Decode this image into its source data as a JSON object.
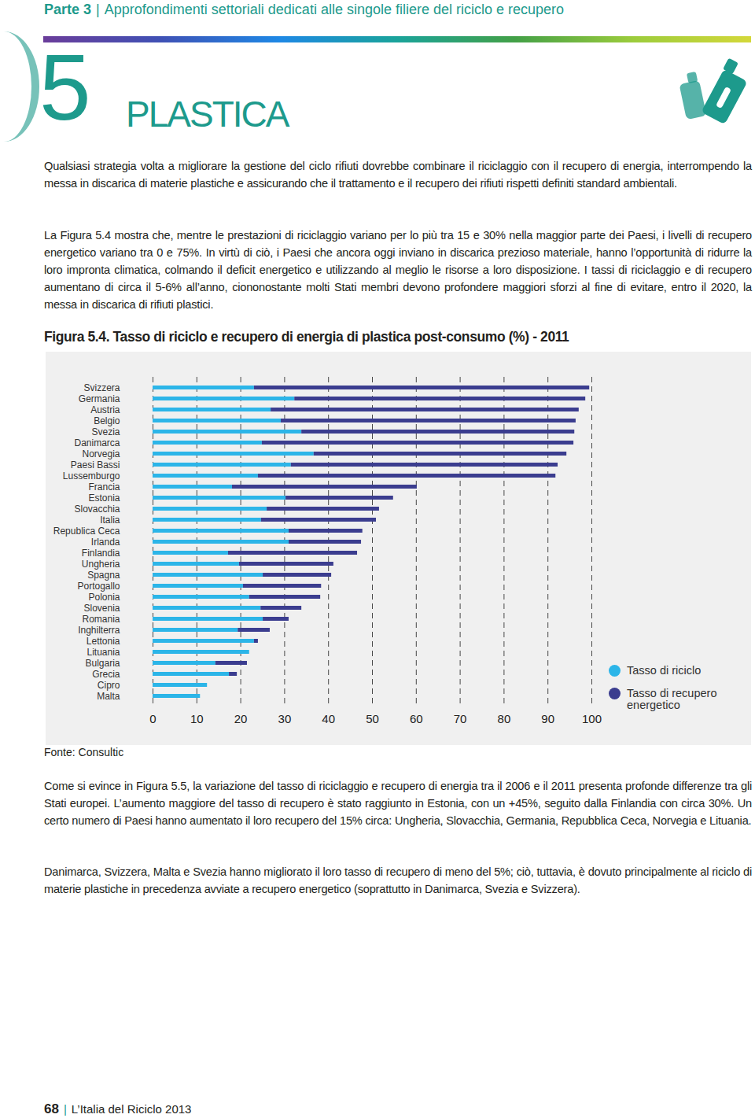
{
  "document": {
    "header": {
      "part": "Parte 3",
      "separator": "|",
      "text": "Approfondimenti settoriali dedicati alle singole filiere del riciclo e recupero"
    },
    "chapter": {
      "number": "5",
      "title": "PLASTICA"
    },
    "paragraphs_before": [
      "Qualsiasi strategia volta a migliorare la gestione del ciclo rifiuti dovrebbe combinare il riciclaggio con il recupero di energia, interrompendo la messa in discarica di materie plastiche e assicurando che il trattamento e il recupero dei rifiuti rispetti definiti standard ambientali.",
      "La Figura 5.4 mostra che, mentre le prestazioni di riciclaggio variano per lo più tra 15 e 30% nella maggior parte dei Paesi, i livelli di recupero energetico variano tra 0 e 75%. In virtù di ciò, i Paesi che ancora oggi inviano in discarica prezioso materiale, hanno l’opportunità di ridurre la loro impronta climatica, colmando il deficit energetico e utilizzando al meglio le risorse a loro disposizione. I tassi di riciclaggio e di recupero aumentano di circa il 5-6% all’anno, ciononostante molti Stati membri devono profondere maggiori sforzi al fine di evitare, entro il 2020, la messa in discarica di rifiuti plastici."
    ],
    "figure_title": "Figura 5.4. Tasso di riciclo e recupero di energia di plastica post-consumo (%) - 2011",
    "source": "Fonte: Consultic",
    "paragraphs_after": [
      "Come si evince in Figura 5.5, la variazione del tasso di riciclaggio e recupero di energia tra il 2006 e il 2011 presenta profonde differenze tra gli Stati europei. L’aumento maggiore del tasso di recupero è stato raggiunto in Estonia, con un +45%, seguito dalla Finlandia con circa 30%. Un certo numero di Paesi hanno aumentato il loro recupero del 15% circa: Ungheria, Slovacchia, Germania, Repubblica Ceca, Norvegia e Lituania.",
      "Danimarca, Svizzera, Malta e Svezia hanno migliorato il loro tasso di recupero di meno del 5%; ciò, tuttavia, è dovuto principalmente al riciclo di materie plastiche in precedenza avviate a recupero energetico (soprattutto in Danimarca, Svezia e Svizzera)."
    ],
    "footer": {
      "page": "68",
      "separator": "|",
      "text": "L’Italia del Riciclo 2013"
    }
  },
  "chart_data": {
    "type": "bar",
    "orientation": "horizontal",
    "stacked": true,
    "grid": true,
    "legend": "right",
    "categories": [
      "Svizzera",
      "Germania",
      "Austria",
      "Belgio",
      "Svezia",
      "Danimarca",
      "Norvegia",
      "Paesi Bassi",
      "Lussemburgo",
      "Francia",
      "Estonia",
      "Slovacchia",
      "Italia",
      "Republica Ceca",
      "Irlanda",
      "Finlandia",
      "Ungheria",
      "Spagna",
      "Portogallo",
      "Polonia",
      "Slovenia",
      "Romania",
      "Inghilterra",
      "Lettonia",
      "Lituania",
      "Bulgaria",
      "Grecia",
      "Cipro",
      "Malta"
    ],
    "series": [
      {
        "name": "Tasso di riciclo",
        "color": "#2cb5e8",
        "values": [
          23.1,
          32.3,
          26.9,
          29.2,
          33.9,
          24.9,
          36.7,
          31.5,
          24.0,
          18.1,
          30.3,
          26.0,
          24.7,
          31.0,
          31.0,
          17.2,
          19.7,
          25.1,
          20.6,
          22.0,
          24.6,
          25.1,
          19.4,
          23.1,
          22.0,
          14.3,
          17.4,
          12.4,
          10.8
        ]
      },
      {
        "name": "Tasso di recupero energetico",
        "color": "#3b3d8f",
        "values": [
          76.4,
          66.3,
          70.2,
          67.2,
          62.2,
          71.0,
          57.6,
          60.8,
          67.8,
          42.1,
          24.5,
          25.6,
          26.2,
          16.8,
          16.5,
          29.4,
          21.5,
          15.6,
          17.8,
          16.2,
          9.3,
          5.9,
          7.3,
          0.9,
          0,
          7.2,
          1.8,
          0,
          0
        ]
      }
    ],
    "xlim": [
      0,
      100
    ],
    "xticks": [
      0,
      10,
      20,
      30,
      40,
      50,
      60,
      70,
      80,
      90,
      100
    ]
  }
}
